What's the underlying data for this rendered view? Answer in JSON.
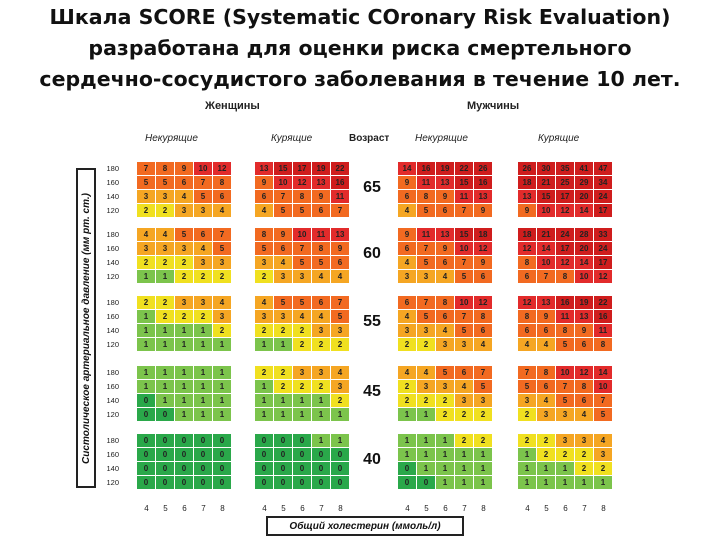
{
  "title": {
    "line1": "Шкала SCORE (Systematic COronary Risk Evaluation)",
    "line2": "разработана для оценки риска смертельного",
    "line3": "сердечно-сосудистого заболевания в течение 10 лет."
  },
  "chart": {
    "women_label": "Женщины",
    "men_label": "Мужчины",
    "nonsmoking_label": "Некурящие",
    "smoking_label": "Курящие",
    "age_header": "Возраст",
    "y_axis_label": "Систолическое артериальное давление (мм рт. ст.)",
    "x_axis_label": "Общий холестерин (ммоль/л)",
    "bp_levels": [
      "180",
      "160",
      "140",
      "120"
    ],
    "cholesterol_levels": [
      "4",
      "5",
      "6",
      "7",
      "8"
    ]
  },
  "chart_data": {
    "type": "heatmap",
    "ages": [
      {
        "age": "65",
        "women_nonsmoking": [
          [
            7,
            8,
            9,
            10,
            12
          ],
          [
            5,
            5,
            6,
            7,
            8
          ],
          [
            3,
            3,
            4,
            5,
            6
          ],
          [
            2,
            2,
            3,
            3,
            4
          ]
        ],
        "women_smoking": [
          [
            13,
            15,
            17,
            19,
            22
          ],
          [
            9,
            10,
            12,
            13,
            16
          ],
          [
            6,
            7,
            8,
            9,
            11
          ],
          [
            4,
            5,
            5,
            6,
            7
          ]
        ],
        "men_nonsmoking": [
          [
            14,
            16,
            19,
            22,
            26
          ],
          [
            9,
            11,
            13,
            15,
            16
          ],
          [
            6,
            8,
            9,
            11,
            13
          ],
          [
            4,
            5,
            6,
            7,
            9
          ]
        ],
        "men_smoking": [
          [
            26,
            30,
            35,
            41,
            47
          ],
          [
            18,
            21,
            25,
            29,
            34
          ],
          [
            13,
            15,
            17,
            20,
            24
          ],
          [
            9,
            10,
            12,
            14,
            17
          ]
        ]
      },
      {
        "age": "60",
        "women_nonsmoking": [
          [
            4,
            4,
            5,
            6,
            7
          ],
          [
            3,
            3,
            3,
            4,
            5
          ],
          [
            2,
            2,
            2,
            3,
            3
          ],
          [
            1,
            1,
            2,
            2,
            2
          ]
        ],
        "women_smoking": [
          [
            8,
            9,
            10,
            11,
            13
          ],
          [
            5,
            6,
            7,
            8,
            9
          ],
          [
            3,
            4,
            5,
            5,
            6
          ],
          [
            2,
            3,
            3,
            4,
            4
          ]
        ],
        "men_nonsmoking": [
          [
            9,
            11,
            13,
            15,
            18
          ],
          [
            6,
            7,
            9,
            10,
            12
          ],
          [
            4,
            5,
            6,
            7,
            9
          ],
          [
            3,
            3,
            4,
            5,
            6
          ]
        ],
        "men_smoking": [
          [
            18,
            21,
            24,
            28,
            33
          ],
          [
            12,
            14,
            17,
            20,
            24
          ],
          [
            8,
            10,
            12,
            14,
            17
          ],
          [
            6,
            7,
            8,
            10,
            12
          ]
        ]
      },
      {
        "age": "55",
        "women_nonsmoking": [
          [
            2,
            2,
            3,
            3,
            4
          ],
          [
            1,
            2,
            2,
            2,
            3
          ],
          [
            1,
            1,
            1,
            1,
            2
          ],
          [
            1,
            1,
            1,
            1,
            1
          ]
        ],
        "women_smoking": [
          [
            4,
            5,
            5,
            6,
            7
          ],
          [
            3,
            3,
            4,
            4,
            5
          ],
          [
            2,
            2,
            2,
            3,
            3
          ],
          [
            1,
            1,
            2,
            2,
            2
          ]
        ],
        "men_nonsmoking": [
          [
            6,
            7,
            8,
            10,
            12
          ],
          [
            4,
            5,
            6,
            7,
            8
          ],
          [
            3,
            3,
            4,
            5,
            6
          ],
          [
            2,
            2,
            3,
            3,
            4
          ]
        ],
        "men_smoking": [
          [
            12,
            13,
            16,
            19,
            22
          ],
          [
            8,
            9,
            11,
            13,
            16
          ],
          [
            6,
            6,
            8,
            9,
            11
          ],
          [
            4,
            4,
            5,
            6,
            8
          ]
        ]
      },
      {
        "age": "45",
        "women_nonsmoking": [
          [
            1,
            1,
            1,
            1,
            1
          ],
          [
            1,
            1,
            1,
            1,
            1
          ],
          [
            0,
            1,
            1,
            1,
            1
          ],
          [
            0,
            0,
            1,
            1,
            1
          ]
        ],
        "women_smoking": [
          [
            2,
            2,
            3,
            3,
            4
          ],
          [
            1,
            2,
            2,
            2,
            3
          ],
          [
            1,
            1,
            1,
            1,
            2
          ],
          [
            1,
            1,
            1,
            1,
            1
          ]
        ],
        "men_nonsmoking": [
          [
            4,
            4,
            5,
            6,
            7
          ],
          [
            2,
            3,
            3,
            4,
            5
          ],
          [
            2,
            2,
            2,
            3,
            3
          ],
          [
            1,
            1,
            2,
            2,
            2
          ]
        ],
        "men_smoking": [
          [
            7,
            8,
            10,
            12,
            14
          ],
          [
            5,
            6,
            7,
            8,
            10
          ],
          [
            3,
            4,
            5,
            6,
            7
          ],
          [
            2,
            3,
            3,
            4,
            5
          ]
        ]
      },
      {
        "age": "40",
        "women_nonsmoking": [
          [
            0,
            0,
            0,
            0,
            0
          ],
          [
            0,
            0,
            0,
            0,
            0
          ],
          [
            0,
            0,
            0,
            0,
            0
          ],
          [
            0,
            0,
            0,
            0,
            0
          ]
        ],
        "women_smoking": [
          [
            0,
            0,
            0,
            1,
            1
          ],
          [
            0,
            0,
            0,
            0,
            0
          ],
          [
            0,
            0,
            0,
            0,
            0
          ],
          [
            0,
            0,
            0,
            0,
            0
          ]
        ],
        "men_nonsmoking": [
          [
            1,
            1,
            1,
            2,
            2
          ],
          [
            1,
            1,
            1,
            1,
            1
          ],
          [
            0,
            1,
            1,
            1,
            1
          ],
          [
            0,
            0,
            1,
            1,
            1
          ]
        ],
        "men_smoking": [
          [
            2,
            2,
            3,
            3,
            4
          ],
          [
            1,
            2,
            2,
            2,
            3
          ],
          [
            1,
            1,
            1,
            2,
            2
          ],
          [
            1,
            1,
            1,
            1,
            1
          ]
        ]
      }
    ],
    "colors": {
      "0": "#2aa84a",
      "1": "#7cc44c",
      "2": "#f0e020",
      "3_4": "#f5a623",
      "5_9": "#f26a21",
      "10_14": "#e22b2b",
      "15_plus": "#cf1d1d"
    }
  }
}
